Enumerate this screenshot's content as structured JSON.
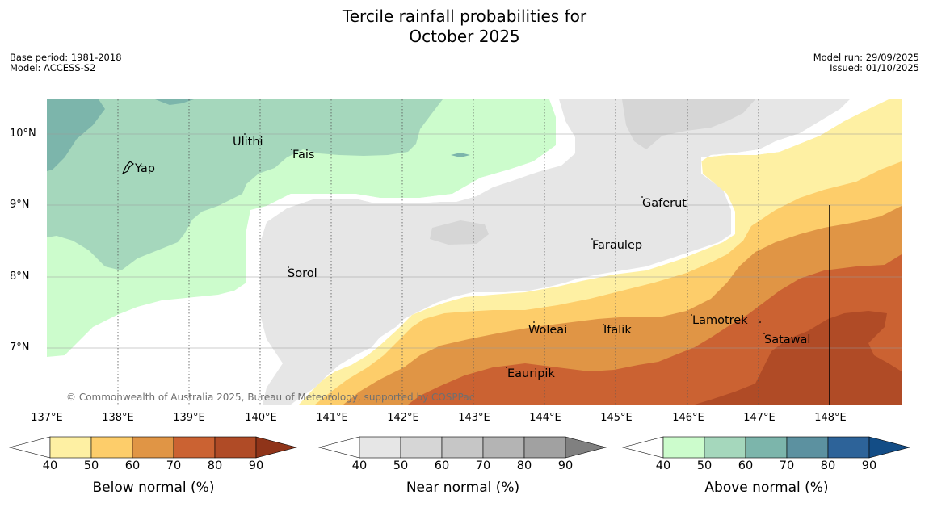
{
  "header": {
    "title_line1": "Tercile rainfall probabilities for",
    "title_line2": "October 2025",
    "base_period": "Base period: 1981-2018",
    "model": "Model: ACCESS-S2",
    "model_run": "Model run: 29/09/2025",
    "issued": "Issued: 01/10/2025"
  },
  "map": {
    "lat_labels": [
      "10°N",
      "9°N",
      "8°N",
      "7°N"
    ],
    "lon_labels": [
      "137°E",
      "138°E",
      "139°E",
      "140°E",
      "141°E",
      "142°E",
      "143°E",
      "144°E",
      "145°E",
      "146°E",
      "147°E",
      "148°E"
    ],
    "places": [
      "Yap",
      "Ulithi",
      "Fais",
      "Gaferut",
      "Faraulep",
      "Sorol",
      "Woleai",
      "Ifalik",
      "Lamotrek",
      "Satawal",
      "Eauripik"
    ],
    "copyright": "© Commonwealth of Australia 2025, Bureau of Meteorology, supported by COSPPac",
    "colors": {
      "below": [
        "#fef0a3",
        "#fdcd6a",
        "#e09545",
        "#cb6232",
        "#b04b26"
      ],
      "near": [
        "#e6e6e6",
        "#d6d6d6",
        "#c6c6c6",
        "#b4b4b4",
        "#a1a1a1"
      ],
      "above": [
        "#ccfccc",
        "#a5d7bc",
        "#7cb5ab",
        "#5c91a0",
        "#2d6399"
      ]
    }
  },
  "colorbars": {
    "ticks": [
      "40",
      "50",
      "60",
      "70",
      "80",
      "90"
    ],
    "below": {
      "label": "Below normal (%)",
      "colors": [
        "#ffffff",
        "#fef0a3",
        "#fdcd6a",
        "#e09545",
        "#cb6232",
        "#b04b26",
        "#8f3419"
      ]
    },
    "near": {
      "label": "Near normal (%)",
      "colors": [
        "#ffffff",
        "#e6e6e6",
        "#d6d6d6",
        "#c6c6c6",
        "#b4b4b4",
        "#a1a1a1",
        "#808080"
      ]
    },
    "above": {
      "label": "Above normal (%)",
      "colors": [
        "#ffffff",
        "#ccfccc",
        "#a5d7bc",
        "#7cb5ab",
        "#5c91a0",
        "#2d6399",
        "#134d86"
      ]
    }
  }
}
